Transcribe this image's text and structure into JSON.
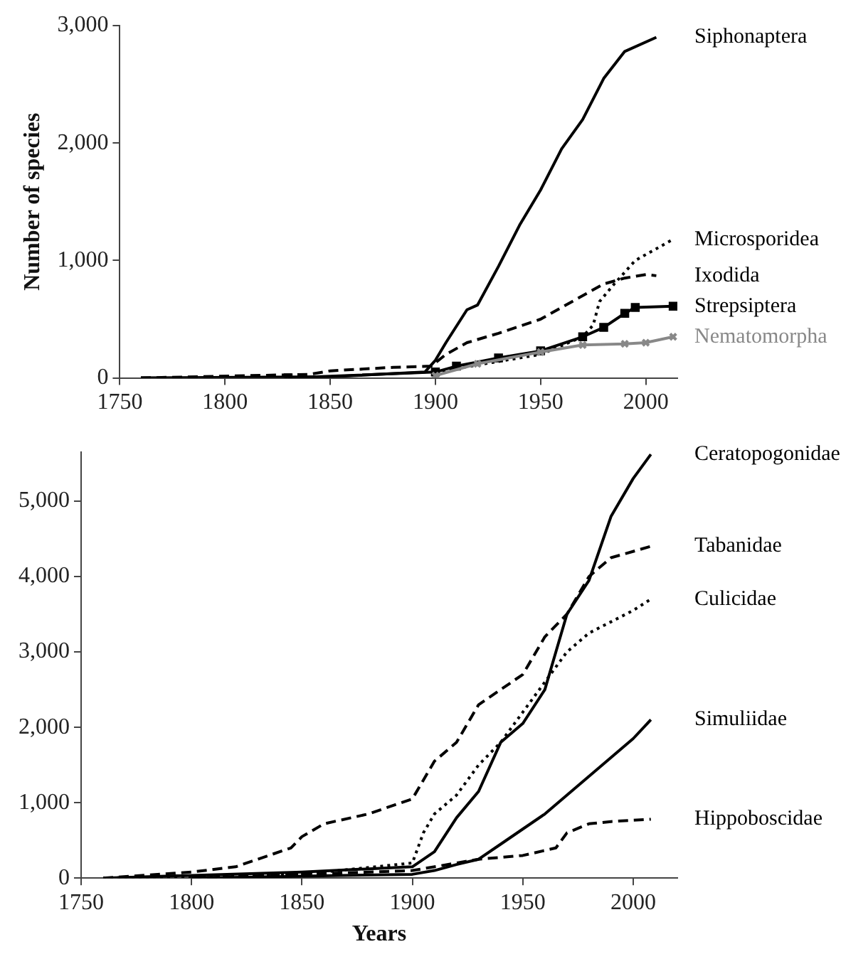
{
  "chart_data": [
    {
      "type": "line",
      "ylabel": "Number of species",
      "xlim": [
        1750,
        2015
      ],
      "xticks": [
        1750,
        1800,
        1850,
        1900,
        1950,
        2000
      ],
      "ylim": [
        0,
        3000
      ],
      "yticks": [
        {
          "value": 0,
          "label": "0"
        },
        {
          "value": 1000,
          "label": "1,000"
        },
        {
          "value": 2000,
          "label": "2,000"
        },
        {
          "value": 3000,
          "label": "3,000"
        }
      ],
      "grid": false,
      "legend": false,
      "marker": "none",
      "series": [
        {
          "name": "Siphonaptera",
          "color": "#000000",
          "line_style": "solid",
          "x": [
            1760,
            1850,
            1895,
            1900,
            1905,
            1915,
            1920,
            1930,
            1940,
            1950,
            1960,
            1970,
            1980,
            1990,
            2005
          ],
          "values": [
            0,
            10,
            50,
            150,
            300,
            580,
            620,
            950,
            1300,
            1600,
            1950,
            2200,
            2550,
            2780,
            2900
          ]
        },
        {
          "name": "Microsporidea",
          "color": "#000000",
          "line_style": "dotted",
          "x": [
            1900,
            1950,
            1970,
            1975,
            1978,
            1985,
            1995,
            2005,
            2013
          ],
          "values": [
            50,
            200,
            350,
            450,
            650,
            800,
            1000,
            1100,
            1180
          ]
        },
        {
          "name": "Ixodida",
          "color": "#000000",
          "line_style": "dashed",
          "x": [
            1760,
            1840,
            1850,
            1880,
            1898,
            1905,
            1915,
            1930,
            1950,
            1965,
            1980,
            1990,
            2000,
            2005
          ],
          "values": [
            0,
            30,
            60,
            90,
            100,
            200,
            300,
            380,
            500,
            650,
            800,
            850,
            880,
            870
          ]
        },
        {
          "name": "Strepsiptera",
          "color": "#000000",
          "line_style": "solid",
          "marker": "square",
          "x": [
            1830,
            1900,
            1910,
            1930,
            1950,
            1970,
            1980,
            1990,
            1995,
            2013
          ],
          "values": [
            0,
            50,
            100,
            170,
            230,
            350,
            430,
            550,
            600,
            610
          ]
        },
        {
          "name": "Nematomorpha",
          "color": "#888888",
          "line_style": "solid",
          "marker": "cross",
          "x": [
            1900,
            1920,
            1950,
            1970,
            1990,
            2000,
            2013
          ],
          "values": [
            20,
            120,
            220,
            280,
            290,
            300,
            350
          ]
        }
      ]
    },
    {
      "type": "line",
      "xlabel": "Years",
      "xlim": [
        1750,
        2020
      ],
      "xticks": [
        1750,
        1800,
        1850,
        1900,
        1950,
        2000
      ],
      "ylim": [
        0,
        5650
      ],
      "yticks": [
        {
          "value": 0,
          "label": "0"
        },
        {
          "value": 1000,
          "label": "1,000"
        },
        {
          "value": 2000,
          "label": "2,000"
        },
        {
          "value": 3000,
          "label": "3,000"
        },
        {
          "value": 4000,
          "label": "4,000"
        },
        {
          "value": 5000,
          "label": "5,000"
        }
      ],
      "grid": false,
      "legend": false,
      "marker": "none",
      "series": [
        {
          "name": "Ceratopogonidae",
          "color": "#000000",
          "line_style": "solid",
          "x": [
            1760,
            1850,
            1900,
            1910,
            1920,
            1930,
            1940,
            1950,
            1960,
            1965,
            1970,
            1980,
            1990,
            2000,
            2008
          ],
          "values": [
            0,
            80,
            150,
            350,
            800,
            1150,
            1800,
            2050,
            2500,
            3000,
            3500,
            3950,
            4800,
            5300,
            5620
          ]
        },
        {
          "name": "Tabanidae",
          "color": "#000000",
          "line_style": "dashed",
          "x": [
            1760,
            1800,
            1820,
            1830,
            1845,
            1850,
            1860,
            1880,
            1900,
            1910,
            1920,
            1925,
            1930,
            1940,
            1950,
            1960,
            1970,
            1980,
            1990,
            2008
          ],
          "values": [
            0,
            80,
            150,
            250,
            400,
            550,
            720,
            850,
            1050,
            1550,
            1800,
            2050,
            2300,
            2500,
            2700,
            3200,
            3500,
            4000,
            4250,
            4400
          ]
        },
        {
          "name": "Culicidae",
          "color": "#000000",
          "line_style": "dotted",
          "x": [
            1760,
            1850,
            1900,
            1905,
            1910,
            1920,
            1930,
            1940,
            1950,
            1960,
            1970,
            1980,
            1990,
            2000,
            2008
          ],
          "values": [
            0,
            50,
            200,
            600,
            850,
            1100,
            1500,
            1800,
            2200,
            2600,
            3000,
            3250,
            3400,
            3550,
            3700
          ]
        },
        {
          "name": "Simuliidae",
          "color": "#000000",
          "line_style": "solid",
          "x": [
            1800,
            1900,
            1910,
            1920,
            1930,
            1940,
            1950,
            1960,
            1970,
            1980,
            1990,
            2000,
            2008
          ],
          "values": [
            0,
            50,
            100,
            180,
            250,
            450,
            650,
            850,
            1100,
            1350,
            1600,
            1850,
            2100
          ]
        },
        {
          "name": "Hippoboscidae",
          "color": "#000000",
          "line_style": "dashed",
          "x": [
            1800,
            1900,
            1930,
            1950,
            1965,
            1970,
            1980,
            1990,
            2008
          ],
          "values": [
            0,
            100,
            250,
            300,
            400,
            600,
            720,
            750,
            780
          ]
        }
      ]
    }
  ]
}
